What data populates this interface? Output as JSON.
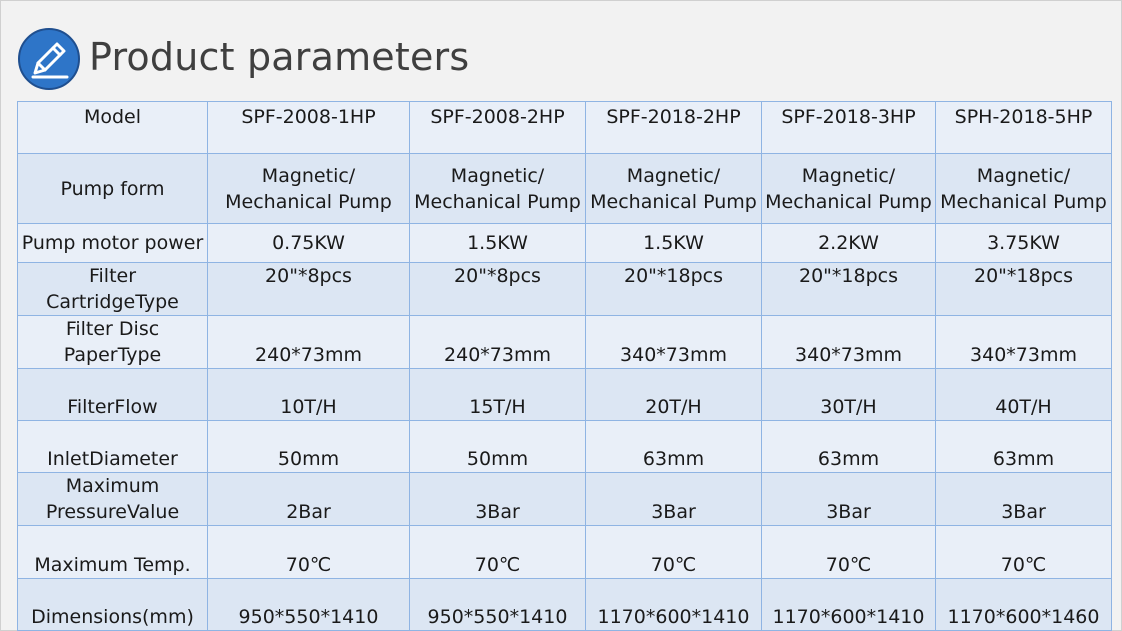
{
  "title": "Product parameters",
  "icon": "pencil-edit-icon",
  "colors": {
    "icon_bg": "#2e75c8",
    "border": "#8fb4e3",
    "row_light": "#e9eff8",
    "row_mid": "#dce6f3",
    "title": "#3f3f3f"
  },
  "table": {
    "header": {
      "label": "Model",
      "models": [
        "SPF-2008-1HP",
        "SPF-2008-2HP",
        "SPF-2018-2HP",
        "SPF-2018-3HP",
        "SPH-2018-5HP"
      ]
    },
    "pump_form": {
      "label": "Pump form",
      "line1": "Magnetic/",
      "line2": "Mechanical Pump"
    },
    "motor_power": {
      "label": "Pump motor power",
      "values": [
        "0.75KW",
        "1.5KW",
        "1.5KW",
        "2.2KW",
        "3.75KW"
      ]
    },
    "filter_cartridge": {
      "label_line1": "Filter",
      "label_line2": "CartridgeType",
      "values": [
        "20\"*8pcs",
        "20\"*8pcs",
        "20\"*18pcs",
        "20\"*18pcs",
        "20\"*18pcs"
      ]
    },
    "filter_disc": {
      "label_line1": "Filter Disc",
      "label_line2": "PaperType",
      "values": [
        "240*73mm",
        "240*73mm",
        "340*73mm",
        "340*73mm",
        "340*73mm"
      ]
    },
    "filter_flow": {
      "label": "FilterFlow",
      "values": [
        "10T/H",
        "15T/H",
        "20T/H",
        "30T/H",
        "40T/H"
      ]
    },
    "inlet_diameter": {
      "label": "InletDiameter",
      "values": [
        "50mm",
        "50mm",
        "63mm",
        "63mm",
        "63mm"
      ]
    },
    "max_pressure": {
      "label_line1": "Maximum",
      "label_line2": "PressureValue",
      "values": [
        "2Bar",
        "3Bar",
        "3Bar",
        "3Bar",
        "3Bar"
      ]
    },
    "max_temp": {
      "label": "Maximum Temp.",
      "values": [
        "70℃",
        "70℃",
        "70℃",
        "70℃",
        "70℃"
      ]
    },
    "dimensions": {
      "label": "Dimensions(mm)",
      "values": [
        "950*550*1410",
        "950*550*1410",
        "1170*600*1410",
        "1170*600*1410",
        "1170*600*1460"
      ]
    }
  }
}
